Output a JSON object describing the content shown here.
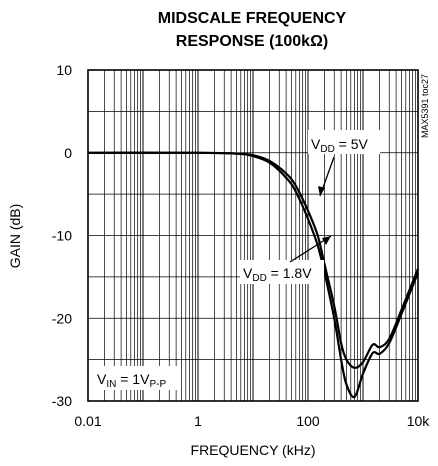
{
  "chart_data": {
    "type": "line",
    "title_line1": "MIDSCALE FREQUENCY",
    "title_line2": "RESPONSE (100kΩ)",
    "xlabel": "FREQUENCY (kHz)",
    "ylabel": "GAIN (dB)",
    "x_scale": "log",
    "xlim": [
      0.01,
      10000
    ],
    "ylim": [
      -30,
      10
    ],
    "x_ticks": [
      "0.01",
      "1",
      "100",
      "10k"
    ],
    "x_tick_values": [
      0.01,
      1,
      100,
      10000
    ],
    "y_ticks": [
      "10",
      "0",
      "-10",
      "-20",
      "-30"
    ],
    "y_tick_values": [
      10,
      0,
      -10,
      -20,
      -30
    ],
    "grid": true,
    "side_tag": "MAX5391 toc27",
    "annotations": {
      "vin": {
        "main": "V",
        "sub1": "IN",
        "mid": " = 1V",
        "sub2": "P-P"
      },
      "vdd5": {
        "main": "V",
        "sub": "DD",
        "rest": " = 5V"
      },
      "vdd18": {
        "main": "V",
        "sub": "DD",
        "rest": " = 1.8V"
      }
    },
    "series": [
      {
        "name": "VDD = 5V",
        "x": [
          0.01,
          1,
          5,
          10,
          20,
          40,
          60,
          100,
          150,
          200,
          300,
          400,
          500,
          700,
          1000,
          1500,
          2000,
          3000,
          5000,
          10000
        ],
        "y": [
          0,
          0,
          -0.1,
          -0.3,
          -1,
          -2.5,
          -4,
          -7,
          -10,
          -13.5,
          -18.5,
          -23,
          -25,
          -26,
          -25.3,
          -23.2,
          -23.5,
          -22.5,
          -19,
          -14
        ]
      },
      {
        "name": "VDD = 1.8V",
        "x": [
          0.01,
          1,
          5,
          10,
          20,
          40,
          60,
          100,
          150,
          200,
          300,
          400,
          500,
          700,
          1000,
          1500,
          2000,
          3000,
          5000,
          10000
        ],
        "y": [
          0,
          0,
          -0.1,
          -0.4,
          -1.2,
          -3,
          -4.7,
          -8,
          -11.2,
          -14.5,
          -20,
          -25,
          -28,
          -29.5,
          -26.7,
          -24.2,
          -24.3,
          -23,
          -19.5,
          -14.5
        ]
      }
    ]
  }
}
